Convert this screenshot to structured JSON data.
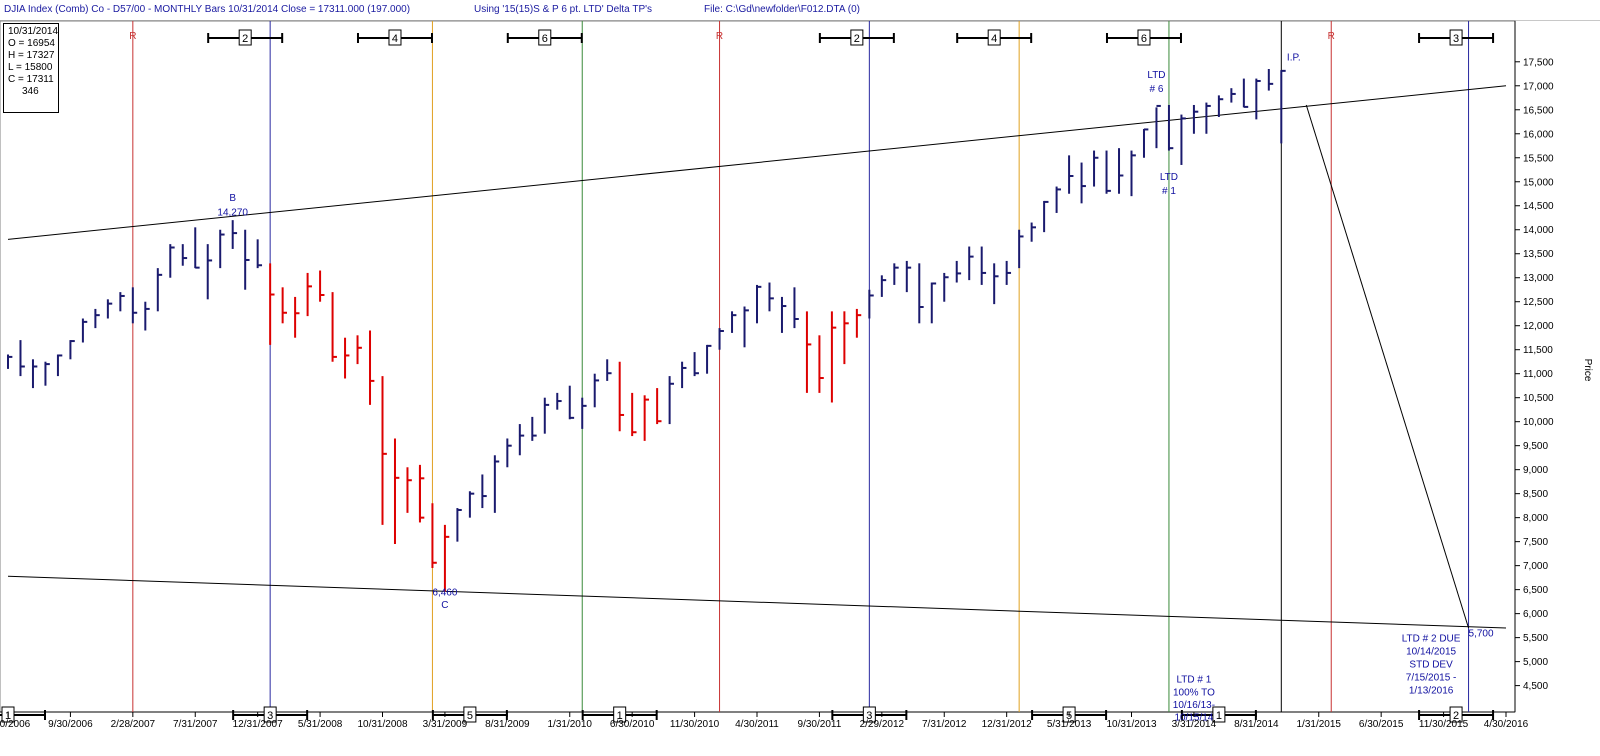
{
  "header": {
    "title": "DJIA Index (Comb) Co - D57/00  - MONTHLY Bars  10/31/2014 Close = 17311.000 (197.000)",
    "using": "Using '15(15)S & P  6 pt. LTD' Delta TP's",
    "file": "File: C:\\Gd\\newfolder\\F012.DTA (0)"
  },
  "ohlc": {
    "date": "10/31/2014",
    "open": "O = 16954",
    "high": "H = 17327",
    "low": "L = 15800",
    "close": "C = 17311",
    "extra": "346"
  },
  "chart_data": {
    "type": "ohlc",
    "title": "DJIA Index (Comb) Co - D57/00  - MONTHLY Bars  10/31/2014 Close = 17311.000 (197.000)",
    "xlabel": "",
    "ylabel": "Price",
    "ylim": [
      3950,
      18350
    ],
    "xlim": [
      "2006-04",
      "2016-04"
    ],
    "yticks": [
      "4,500",
      "5,000",
      "5,500",
      "6,000",
      "6,500",
      "7,000",
      "7,500",
      "8,000",
      "8,500",
      "9,000",
      "9,500",
      "10,000",
      "10,500",
      "11,000",
      "11,500",
      "12,000",
      "12,500",
      "13,000",
      "13,500",
      "14,000",
      "14,500",
      "15,000",
      "15,500",
      "16,000",
      "16,500",
      "17,000",
      "17,500"
    ],
    "xticks": [
      "4/30/2006",
      "9/30/2006",
      "2/28/2007",
      "7/31/2007",
      "12/31/2007",
      "5/31/2008",
      "10/31/2008",
      "3/31/2009",
      "8/31/2009",
      "1/31/2010",
      "6/30/2010",
      "11/30/2010",
      "4/30/2011",
      "9/30/2011",
      "2/29/2012",
      "7/31/2012",
      "12/31/2012",
      "5/31/2013",
      "10/31/2013",
      "3/31/2014",
      "8/31/2014",
      "1/31/2015",
      "6/30/2015",
      "11/30/2015",
      "4/30/2016"
    ],
    "colors": {
      "bar": "#1a1a6e",
      "bar_down": "#dd0000",
      "blue_line": "#2828a0",
      "orange_line": "#e0a020",
      "green_line": "#3a8a3a",
      "red_line": "#c83232",
      "trend": "#000000",
      "label": "#1010a0"
    },
    "series": [
      {
        "name": "DJIA monthly",
        "bars": [
          [
            "2006-04",
            11400,
            11100,
            11350,
            "blue"
          ],
          [
            "2006-05",
            11700,
            10950,
            11150,
            "blue"
          ],
          [
            "2006-06",
            11300,
            10700,
            11150,
            "blue"
          ],
          [
            "2006-07",
            11250,
            10750,
            11200,
            "blue"
          ],
          [
            "2006-08",
            11400,
            10950,
            11380,
            "blue"
          ],
          [
            "2006-09",
            11700,
            11300,
            11680,
            "blue"
          ],
          [
            "2006-10",
            12150,
            11650,
            12080,
            "blue"
          ],
          [
            "2006-11",
            12350,
            11950,
            12220,
            "blue"
          ],
          [
            "2006-12",
            12550,
            12150,
            12460,
            "blue"
          ],
          [
            "2007-01",
            12700,
            12300,
            12620,
            "blue"
          ],
          [
            "2007-02",
            12800,
            12050,
            12270,
            "blue"
          ],
          [
            "2007-03",
            12500,
            11900,
            12350,
            "blue"
          ],
          [
            "2007-04",
            13200,
            12300,
            13060,
            "blue"
          ],
          [
            "2007-05",
            13700,
            13000,
            13630,
            "blue"
          ],
          [
            "2007-06",
            13700,
            13250,
            13410,
            "blue"
          ],
          [
            "2007-07",
            14050,
            13200,
            13210,
            "blue"
          ],
          [
            "2007-08",
            13700,
            12550,
            13360,
            "blue"
          ],
          [
            "2007-09",
            14000,
            13200,
            13900,
            "blue"
          ],
          [
            "2007-10",
            14200,
            13600,
            13930,
            "blue"
          ],
          [
            "2007-11",
            14000,
            12750,
            13370,
            "blue"
          ],
          [
            "2007-12",
            13800,
            13200,
            13260,
            "blue"
          ],
          [
            "2008-01",
            13300,
            11600,
            12650,
            "red"
          ],
          [
            "2008-02",
            12800,
            12050,
            12270,
            "red"
          ],
          [
            "2008-03",
            12600,
            11750,
            12260,
            "red"
          ],
          [
            "2008-04",
            13100,
            12200,
            12820,
            "red"
          ],
          [
            "2008-05",
            13150,
            12500,
            12640,
            "red"
          ],
          [
            "2008-06",
            12700,
            11250,
            11350,
            "red"
          ],
          [
            "2008-07",
            11750,
            10900,
            11380,
            "red"
          ],
          [
            "2008-08",
            11800,
            11200,
            11540,
            "red"
          ],
          [
            "2008-09",
            11900,
            10350,
            10850,
            "red"
          ],
          [
            "2008-10",
            10950,
            7850,
            9330,
            "red"
          ],
          [
            "2008-11",
            9650,
            7450,
            8830,
            "red"
          ],
          [
            "2008-12",
            9050,
            8100,
            8780,
            "red"
          ],
          [
            "2008-13",
            9100,
            7950,
            8820,
            "red"
          ],
          [
            "2009-01",
            9050,
            7900,
            8000,
            "red"
          ],
          [
            "2009-02",
            8300,
            6950,
            7060,
            "red"
          ],
          [
            "2009-03",
            7850,
            6460,
            7600,
            "red"
          ],
          [
            "2009-04",
            8200,
            7500,
            8160,
            "blue"
          ],
          [
            "2009-05",
            8550,
            8000,
            8500,
            "blue"
          ],
          [
            "2009-06",
            8900,
            8200,
            8450,
            "blue"
          ],
          [
            "2009-07",
            9300,
            8100,
            9170,
            "blue"
          ],
          [
            "2009-08",
            9650,
            9050,
            9500,
            "blue"
          ],
          [
            "2009-09",
            9950,
            9300,
            9710,
            "blue"
          ],
          [
            "2009-10",
            10100,
            9600,
            9710,
            "blue"
          ],
          [
            "2009-11",
            10500,
            9750,
            10350,
            "blue"
          ],
          [
            "2009-12",
            10600,
            10250,
            10430,
            "blue"
          ],
          [
            "2010-01",
            10750,
            10050,
            10080,
            "blue"
          ],
          [
            "2010-02",
            10500,
            9850,
            10330,
            "blue"
          ],
          [
            "2010-03",
            11000,
            10300,
            10860,
            "blue"
          ],
          [
            "2010-04",
            11300,
            10850,
            11010,
            "blue"
          ],
          [
            "2010-05",
            11250,
            9800,
            10140,
            "red"
          ],
          [
            "2010-06",
            10600,
            9700,
            9780,
            "red"
          ],
          [
            "2010-07",
            10550,
            9600,
            10460,
            "red"
          ],
          [
            "2010-08",
            10700,
            9950,
            10010,
            "red"
          ],
          [
            "2010-09",
            10950,
            9950,
            10790,
            "blue"
          ],
          [
            "2010-10",
            11250,
            10700,
            11120,
            "blue"
          ],
          [
            "2010-11",
            11450,
            10950,
            11010,
            "blue"
          ],
          [
            "2010-12",
            11600,
            11000,
            11580,
            "blue"
          ],
          [
            "2011-01",
            11950,
            11500,
            11890,
            "blue"
          ],
          [
            "2011-02",
            12300,
            11850,
            12220,
            "blue"
          ],
          [
            "2011-03",
            12400,
            11550,
            12320,
            "blue"
          ],
          [
            "2011-04",
            12850,
            12050,
            12810,
            "blue"
          ],
          [
            "2011-05",
            12900,
            12300,
            12570,
            "blue"
          ],
          [
            "2011-06",
            12600,
            11850,
            12410,
            "blue"
          ],
          [
            "2011-07",
            12800,
            11950,
            12140,
            "blue"
          ],
          [
            "2011-08",
            12300,
            10600,
            11610,
            "red"
          ],
          [
            "2011-09",
            11800,
            10600,
            10910,
            "red"
          ],
          [
            "2011-10",
            12300,
            10400,
            11960,
            "red"
          ],
          [
            "2011-11",
            12300,
            11200,
            12050,
            "red"
          ],
          [
            "2011-12",
            12350,
            11750,
            12220,
            "red"
          ],
          [
            "2012-01",
            12750,
            12150,
            12630,
            "blue"
          ],
          [
            "2012-02",
            13050,
            12600,
            12950,
            "blue"
          ],
          [
            "2012-03",
            13300,
            12850,
            13210,
            "blue"
          ],
          [
            "2012-04",
            13350,
            12700,
            13210,
            "blue"
          ],
          [
            "2012-05",
            13300,
            12050,
            12390,
            "blue"
          ],
          [
            "2012-06",
            12900,
            12050,
            12880,
            "blue"
          ],
          [
            "2012-07",
            13100,
            12500,
            13010,
            "blue"
          ],
          [
            "2012-08",
            13350,
            12900,
            13090,
            "blue"
          ],
          [
            "2012-09",
            13650,
            12950,
            13440,
            "blue"
          ],
          [
            "2012-10",
            13650,
            12850,
            13100,
            "blue"
          ],
          [
            "2012-11",
            13300,
            12450,
            13030,
            "blue"
          ],
          [
            "2012-12",
            13350,
            12850,
            13100,
            "blue"
          ],
          [
            "2013-01",
            14000,
            13200,
            13860,
            "blue"
          ],
          [
            "2013-02",
            14150,
            13750,
            14050,
            "blue"
          ],
          [
            "2013-03",
            14600,
            13950,
            14580,
            "blue"
          ],
          [
            "2013-04",
            14900,
            14350,
            14840,
            "blue"
          ],
          [
            "2013-05",
            15550,
            14750,
            15120,
            "blue"
          ],
          [
            "2013-06",
            15400,
            14550,
            14910,
            "blue"
          ],
          [
            "2013-07",
            15650,
            14900,
            15500,
            "blue"
          ],
          [
            "2013-08",
            15650,
            14750,
            14810,
            "blue"
          ],
          [
            "2013-09",
            15700,
            14750,
            15130,
            "blue"
          ],
          [
            "2013-10",
            15650,
            14700,
            15550,
            "blue"
          ],
          [
            "2013-11",
            16100,
            15500,
            16090,
            "blue"
          ],
          [
            "2013-12",
            16550,
            15700,
            16580,
            "blue"
          ],
          [
            "2014-01",
            16600,
            15650,
            15700,
            "blue"
          ],
          [
            "2014-02",
            16400,
            15350,
            16320,
            "blue"
          ],
          [
            "2014-03",
            16600,
            16000,
            16460,
            "blue"
          ],
          [
            "2014-04",
            16650,
            16000,
            16580,
            "blue"
          ],
          [
            "2014-05",
            16800,
            16350,
            16720,
            "blue"
          ],
          [
            "2014-06",
            16950,
            16650,
            16830,
            "blue"
          ],
          [
            "2014-07",
            17150,
            16550,
            16560,
            "blue"
          ],
          [
            "2014-08",
            17150,
            16300,
            17100,
            "blue"
          ],
          [
            "2014-09",
            17350,
            16900,
            17040,
            "blue"
          ],
          [
            "2014-10",
            17327,
            15800,
            17311,
            "blue"
          ]
        ]
      }
    ],
    "cycle_lines": [
      {
        "x": "2007-02",
        "color": "red_line",
        "label": "R"
      },
      {
        "x": "2008-01",
        "color": "blue_line",
        "label": "2"
      },
      {
        "x": "2009-02",
        "color": "orange_line",
        "label": "4"
      },
      {
        "x": "2010-02",
        "color": "green_line",
        "label": "6"
      },
      {
        "x": "2011-01",
        "color": "red_line",
        "label": "R"
      },
      {
        "x": "2012-01",
        "color": "blue_line",
        "label": "2"
      },
      {
        "x": "2013-01",
        "color": "orange_line",
        "label": "4"
      },
      {
        "x": "2014-01",
        "color": "green_line",
        "label": "6"
      },
      {
        "x": "2014-10",
        "color": "trend",
        "label": "I.P."
      },
      {
        "x": "2015-02",
        "color": "red_line",
        "label": "R"
      },
      {
        "x": "2016-01",
        "color": "blue_line",
        "label": "3"
      }
    ],
    "top_markers": [
      {
        "x": "2007-11",
        "label": "2"
      },
      {
        "x": "2008-11",
        "label": "4"
      },
      {
        "x": "2009-11",
        "label": "6"
      },
      {
        "x": "2011-12",
        "label": "2"
      },
      {
        "x": "2012-11",
        "label": "4"
      },
      {
        "x": "2013-11",
        "label": "6"
      },
      {
        "x": "2015-12",
        "label": "3"
      }
    ],
    "bottom_markers": [
      {
        "x": "2006-04",
        "label": "1"
      },
      {
        "x": "2008-01",
        "label": "3"
      },
      {
        "x": "2009-05",
        "label": "5"
      },
      {
        "x": "2010-05",
        "label": "1"
      },
      {
        "x": "2012-01",
        "label": "3"
      },
      {
        "x": "2013-05",
        "label": "5"
      },
      {
        "x": "2014-05",
        "label": "1"
      },
      {
        "x": "2015-12",
        "label": "2"
      }
    ],
    "trendlines": [
      {
        "x1": "2006-04",
        "y1": 13800,
        "x2": "2016-04",
        "y2": 17000
      },
      {
        "x1": "2006-04",
        "y1": 6780,
        "x2": "2016-04",
        "y2": 5700
      },
      {
        "x1": "2014-12",
        "y1": 16600,
        "x2": "2016-01",
        "y2": 5700
      }
    ],
    "annotations": [
      {
        "text": "B",
        "x": "2007-10",
        "y": 14600
      },
      {
        "text": "14,270",
        "x": "2007-10",
        "y": 14300
      },
      {
        "text": "6,460",
        "x": "2009-03",
        "y": 6380
      },
      {
        "text": "C",
        "x": "2009-03",
        "y": 6120
      },
      {
        "text": "LTD",
        "x": "2013-12",
        "y": 17160
      },
      {
        "text": "# 6",
        "x": "2013-12",
        "y": 16870
      },
      {
        "text": "LTD",
        "x": "2014-01",
        "y": 15040
      },
      {
        "text": "# 1",
        "x": "2014-01",
        "y": 14750
      },
      {
        "text": "I.P.",
        "x": "2014-11",
        "y": 17530
      },
      {
        "text": "5,700",
        "x": "2016-02",
        "y": 5520
      },
      {
        "text": "LTD # 1",
        "x": "2014-03",
        "y": 4560
      },
      {
        "text": "100% TO",
        "x": "2014-03",
        "y": 4290
      },
      {
        "text": "10/16/13-",
        "x": "2014-03",
        "y": 4030
      },
      {
        "text": "10/15/14",
        "x": "2014-03",
        "y": 3770
      },
      {
        "text": "LTD # 2 DUE",
        "x": "2015-10",
        "y": 5420
      },
      {
        "text": "10/14/2015",
        "x": "2015-10",
        "y": 5150
      },
      {
        "text": "STD DEV",
        "x": "2015-10",
        "y": 4880
      },
      {
        "text": "7/15/2015 -",
        "x": "2015-10",
        "y": 4610
      },
      {
        "text": "1/13/2016",
        "x": "2015-10",
        "y": 4340
      }
    ]
  }
}
